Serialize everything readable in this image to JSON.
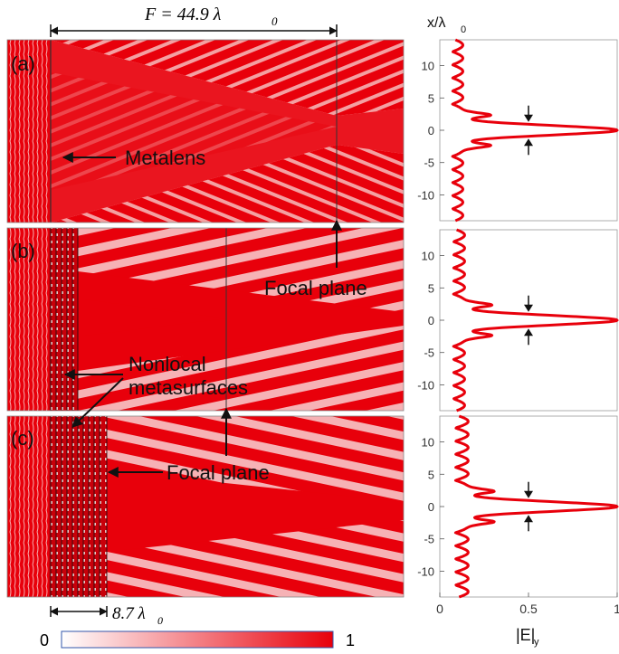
{
  "figure": {
    "focal_length_label": "F = 44.9 λ",
    "focal_length_sub": "0",
    "panels": [
      {
        "id": "a",
        "label": "(a)"
      },
      {
        "id": "b",
        "label": "(b)"
      },
      {
        "id": "c",
        "label": "(c)"
      }
    ],
    "annotations": {
      "metalens": "Metalens",
      "focal_plane_1": "Focal plane",
      "nonlocal_1": "Nonlocal",
      "nonlocal_2": "metasurfaces",
      "focal_plane_2": "Focal plane",
      "thickness": "8.7 λ",
      "thickness_sub": "0"
    },
    "colorbar": {
      "min_label": "0",
      "max_label": "1",
      "color_low": "#ffffff",
      "color_high": "#e8000b"
    },
    "field_color": "#e8000b"
  },
  "chart_data": [
    {
      "type": "line",
      "panel": "a",
      "ylabel": "x/λ",
      "ylabel_sub": "0",
      "xlabel": "",
      "y_ticks": [
        10,
        5,
        0,
        -5,
        -10
      ],
      "x_ticks": [],
      "ylim": [
        -14,
        14
      ],
      "xlim": [
        0,
        1
      ],
      "peak": {
        "x": 0,
        "value": 1.0
      },
      "arrows": [
        {
          "x": 0.5,
          "y": 1.3,
          "dir": "down"
        },
        {
          "x": 0.5,
          "y": -1.3,
          "dir": "up"
        }
      ],
      "sidelobe_amplitude": 0.13
    },
    {
      "type": "line",
      "panel": "b",
      "y_ticks": [
        10,
        5,
        0,
        -5,
        -10
      ],
      "x_ticks": [],
      "ylim": [
        -14,
        14
      ],
      "xlim": [
        0,
        1
      ],
      "peak": {
        "x": 0,
        "value": 1.0
      },
      "arrows": [
        {
          "x": 0.5,
          "y": 1.3,
          "dir": "down"
        },
        {
          "x": 0.5,
          "y": -1.3,
          "dir": "up"
        }
      ],
      "sidelobe_amplitude": 0.14
    },
    {
      "type": "line",
      "panel": "c",
      "y_ticks": [
        10,
        5,
        0,
        -5,
        -10
      ],
      "x_ticks": [
        "0",
        "0.5",
        "1"
      ],
      "x_tick_values": [
        0,
        0.5,
        1
      ],
      "xlabel": "|E|",
      "xlabel_sub": "y",
      "ylim": [
        -14,
        14
      ],
      "xlim": [
        0,
        1
      ],
      "peak": {
        "x": 0,
        "value": 1.0
      },
      "arrows": [
        {
          "x": 0.5,
          "y": 1.3,
          "dir": "down"
        },
        {
          "x": 0.5,
          "y": -1.3,
          "dir": "up"
        }
      ],
      "sidelobe_amplitude": 0.16
    }
  ]
}
